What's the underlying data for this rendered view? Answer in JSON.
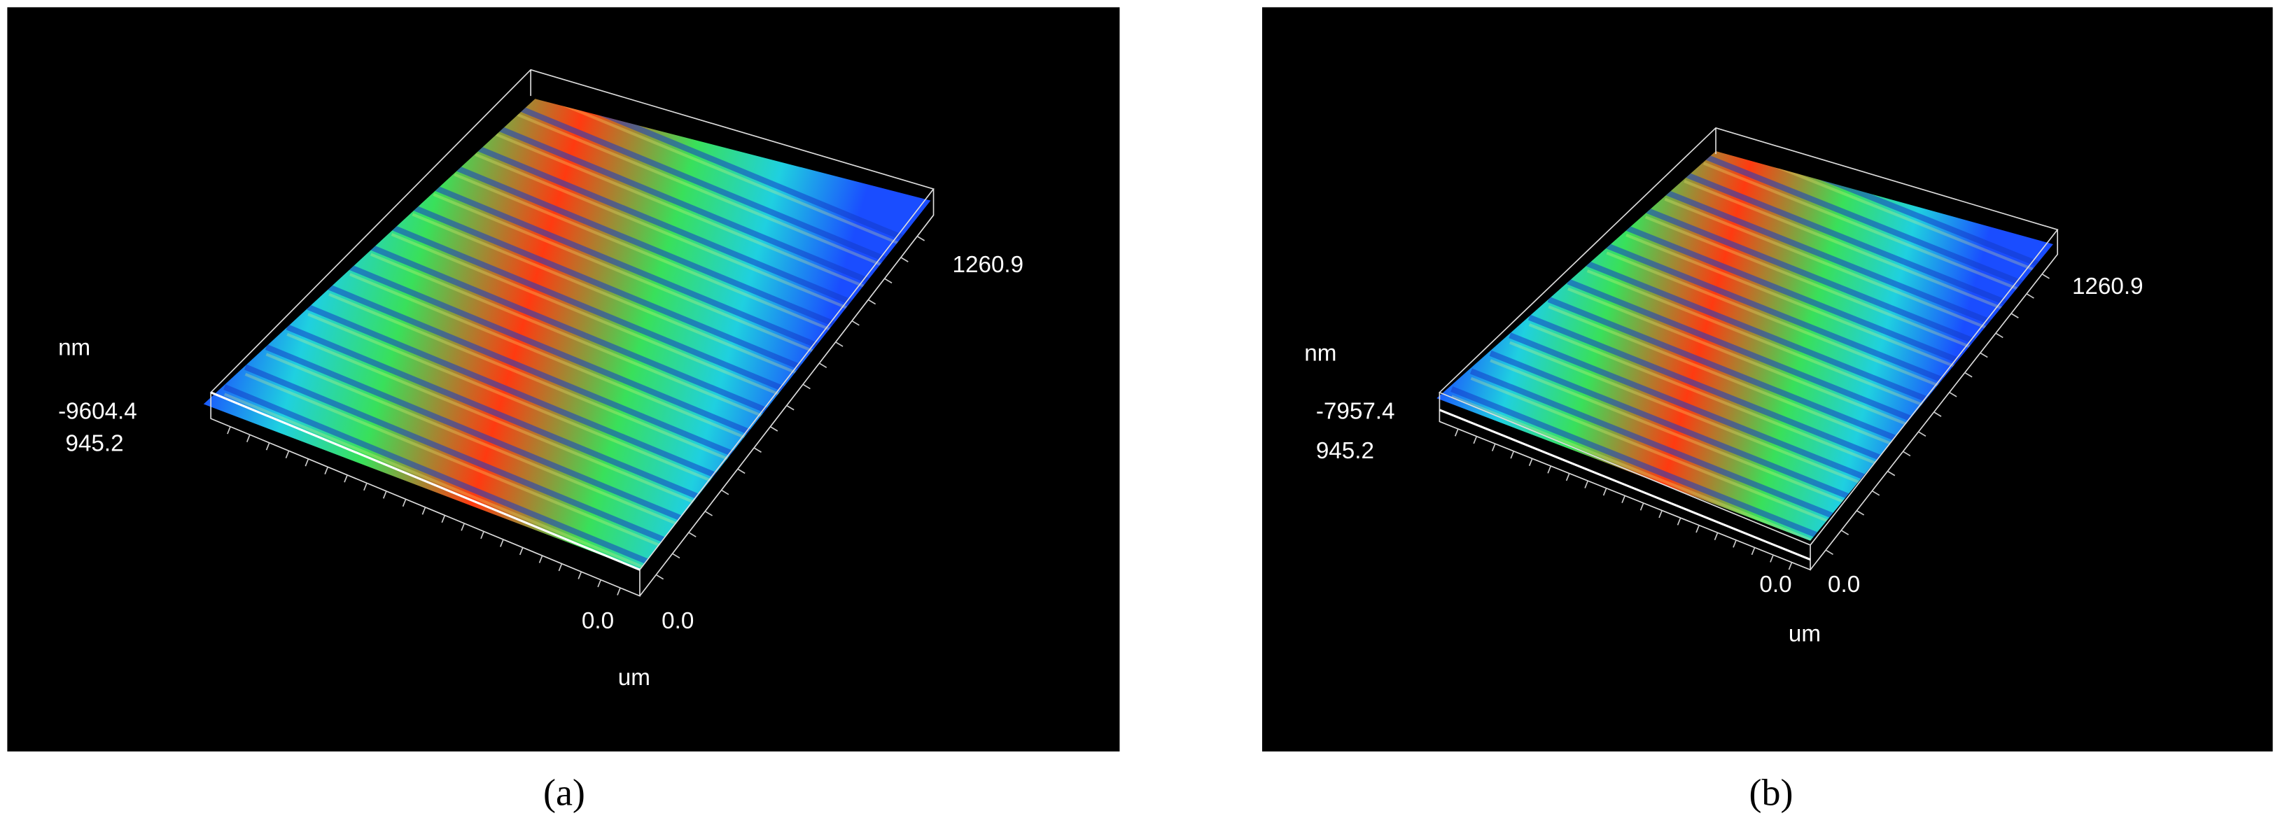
{
  "panels": [
    {
      "caption": "(a)",
      "z_unit": "nm",
      "z_value": "-9604.4",
      "y_value": "945.2",
      "x_value": "1260.9",
      "origin_left": "0.0",
      "origin_right": "0.0",
      "xy_unit": "um"
    },
    {
      "caption": "(b)",
      "z_unit": "nm",
      "z_value": "-7957.4",
      "y_value": "945.2",
      "x_value": "1260.9",
      "origin_left": "0.0",
      "origin_right": "0.0",
      "xy_unit": "um"
    }
  ]
}
